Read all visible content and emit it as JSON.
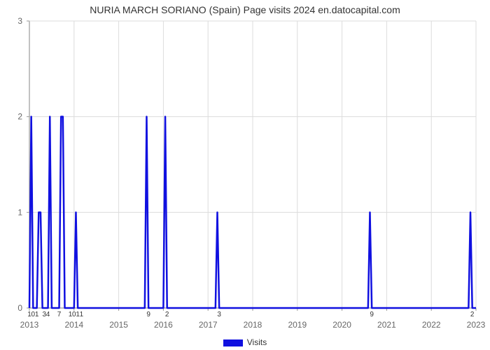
{
  "chart": {
    "type": "line",
    "title": "NURIA MARCH SORIANO (Spain) Page visits 2024 en.datocapital.com",
    "title_fontsize": 14,
    "background_color": "#ffffff",
    "grid_color": "#dcdcdc",
    "axis_color": "#999999",
    "line_color": "#1010e0",
    "line_width": 2.5,
    "x_axis": {
      "min": 0,
      "max": 120,
      "ticks": [
        0,
        12,
        24,
        36,
        48,
        60,
        72,
        84,
        96,
        108,
        120
      ],
      "tick_labels": [
        "2013",
        "2014",
        "2015",
        "2016",
        "2017",
        "2018",
        "2019",
        "2020",
        "2021",
        "2022",
        "2023"
      ]
    },
    "y_axis": {
      "label": "",
      "min": 0,
      "max": 3,
      "ticks": [
        0,
        1,
        2,
        3
      ],
      "tick_labels": [
        "0",
        "1",
        "2",
        "3"
      ]
    },
    "legend": {
      "label": "Visits",
      "color": "#1010e0"
    },
    "point_labels": [
      {
        "x": 0,
        "label": "1"
      },
      {
        "x": 1,
        "label": "0"
      },
      {
        "x": 2,
        "label": "1"
      },
      {
        "x": 4,
        "label": "3"
      },
      {
        "x": 5,
        "label": "4"
      },
      {
        "x": 8,
        "label": "7"
      },
      {
        "x": 11,
        "label": "1"
      },
      {
        "x": 12,
        "label": "0"
      },
      {
        "x": 13,
        "label": "1"
      },
      {
        "x": 14,
        "label": "1"
      },
      {
        "x": 32,
        "label": "9"
      },
      {
        "x": 37,
        "label": "2"
      },
      {
        "x": 51,
        "label": "3"
      },
      {
        "x": 92,
        "label": "9"
      },
      {
        "x": 119,
        "label": "2"
      }
    ],
    "series": {
      "points": [
        [
          0,
          0
        ],
        [
          0.5,
          2
        ],
        [
          1,
          0
        ],
        [
          2,
          0
        ],
        [
          2.5,
          1
        ],
        [
          3,
          1
        ],
        [
          3.5,
          0
        ],
        [
          5,
          0
        ],
        [
          5.5,
          2
        ],
        [
          6,
          0
        ],
        [
          8,
          0
        ],
        [
          8.5,
          2
        ],
        [
          9,
          2
        ],
        [
          9.5,
          0
        ],
        [
          12,
          0
        ],
        [
          12.5,
          1
        ],
        [
          13,
          0
        ],
        [
          30,
          0
        ],
        [
          31,
          0
        ],
        [
          31.5,
          2
        ],
        [
          32,
          0
        ],
        [
          36,
          0
        ],
        [
          36.5,
          2
        ],
        [
          37,
          0
        ],
        [
          49,
          0
        ],
        [
          50,
          0
        ],
        [
          50.5,
          1
        ],
        [
          51,
          0
        ],
        [
          90,
          0
        ],
        [
          91,
          0
        ],
        [
          91.5,
          1
        ],
        [
          92,
          0
        ],
        [
          117,
          0
        ],
        [
          118,
          0
        ],
        [
          118.5,
          1
        ],
        [
          119,
          0
        ],
        [
          120,
          0
        ]
      ]
    }
  }
}
